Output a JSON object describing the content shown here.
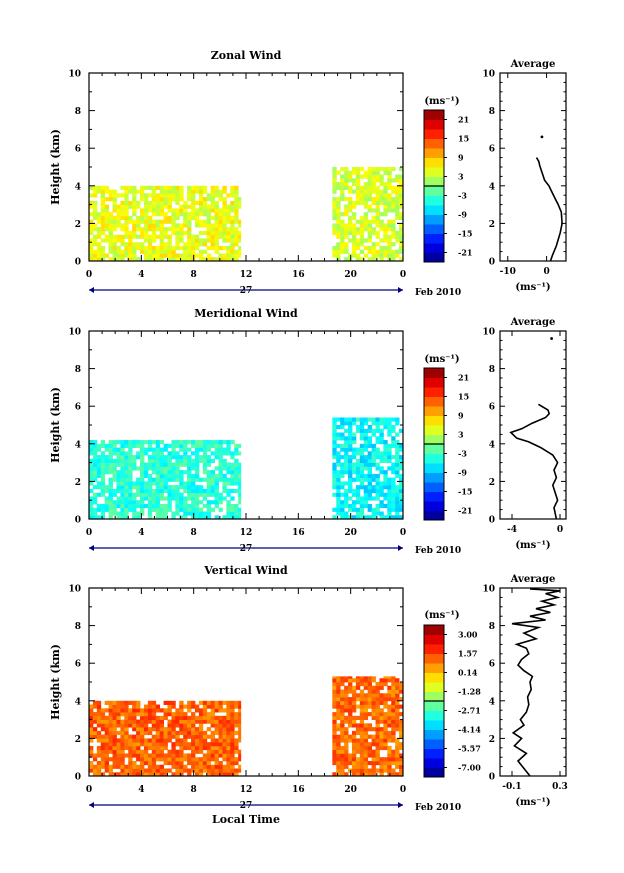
{
  "chart_data": [
    {
      "type": "heatmap",
      "title": "Zonal Wind",
      "ylabel": "Height (km)",
      "xlabel": "",
      "x_ticks": [
        "0",
        "4",
        "8",
        "12",
        "16",
        "20",
        "0"
      ],
      "y_ticks": [
        "0",
        "2",
        "4",
        "6",
        "8",
        "10"
      ],
      "xlim": [
        0,
        24
      ],
      "ylim": [
        0,
        10
      ],
      "date_day": "27",
      "date_month": "Feb 2010",
      "colorbar": {
        "unit": "(ms⁻¹)",
        "ticks": [
          "21",
          "15",
          "9",
          "3",
          "-3",
          "-9",
          "-15",
          "-21"
        ],
        "min": -24,
        "max": 24
      },
      "blocks": [
        {
          "x": [
            0,
            11.6
          ],
          "y": [
            0,
            4.0
          ],
          "value": 5,
          "cover": 0.8
        },
        {
          "x": [
            18.6,
            24
          ],
          "y": [
            0,
            5.0
          ],
          "value": 4,
          "cover": 0.75
        }
      ],
      "average": {
        "title": "Average",
        "xlabel": "(ms⁻¹)",
        "x_ticks": [
          "-10",
          "0"
        ],
        "xlim": [
          -12,
          5
        ],
        "y_ticks": [
          "0",
          "2",
          "4",
          "6",
          "8",
          "10"
        ],
        "points": [
          [
            1.0,
            0
          ],
          [
            1.5,
            0.3
          ],
          [
            2.5,
            0.8
          ],
          [
            3.5,
            1.5
          ],
          [
            4.0,
            2.0
          ],
          [
            3.8,
            2.6
          ],
          [
            3.0,
            3.0
          ],
          [
            2.0,
            3.4
          ],
          [
            1.3,
            3.7
          ],
          [
            0.6,
            4.0
          ],
          [
            -0.5,
            4.3
          ],
          [
            -1.0,
            4.6
          ],
          [
            -1.5,
            4.9
          ],
          [
            -1.8,
            5.1
          ],
          [
            -2.0,
            5.3
          ],
          [
            -2.6,
            5.5
          ]
        ],
        "isolated": [
          [
            -1.2,
            6.6
          ]
        ]
      }
    },
    {
      "type": "heatmap",
      "title": "Meridional Wind",
      "ylabel": "Height (km)",
      "xlabel": "",
      "x_ticks": [
        "0",
        "4",
        "8",
        "12",
        "16",
        "20",
        "0"
      ],
      "y_ticks": [
        "0",
        "2",
        "4",
        "6",
        "8",
        "10"
      ],
      "xlim": [
        0,
        24
      ],
      "ylim": [
        0,
        10
      ],
      "date_day": "27",
      "date_month": "Feb 2010",
      "colorbar": {
        "unit": "(ms⁻¹)",
        "ticks": [
          "21",
          "15",
          "9",
          "3",
          "-3",
          "-9",
          "-15",
          "-21"
        ],
        "min": -24,
        "max": 24
      },
      "blocks": [
        {
          "x": [
            0,
            11.6
          ],
          "y": [
            0,
            4.2
          ],
          "value": -4,
          "cover": 0.8
        },
        {
          "x": [
            18.6,
            24
          ],
          "y": [
            0,
            5.4
          ],
          "value": -6,
          "cover": 0.75
        }
      ],
      "average": {
        "title": "Average",
        "xlabel": "(ms⁻¹)",
        "x_ticks": [
          "-4",
          "0"
        ],
        "xlim": [
          -5,
          0.5
        ],
        "y_ticks": [
          "0",
          "2",
          "4",
          "6",
          "8",
          "10"
        ],
        "points": [
          [
            -0.3,
            0
          ],
          [
            -0.5,
            0.6
          ],
          [
            -0.2,
            1.0
          ],
          [
            -0.4,
            1.4
          ],
          [
            -0.6,
            1.8
          ],
          [
            -0.3,
            2.2
          ],
          [
            -0.5,
            2.6
          ],
          [
            -0.2,
            3.0
          ],
          [
            -0.6,
            3.4
          ],
          [
            -1.6,
            3.8
          ],
          [
            -2.6,
            4.1
          ],
          [
            -3.6,
            4.3
          ],
          [
            -4.1,
            4.6
          ],
          [
            -3.2,
            4.8
          ],
          [
            -2.3,
            5.1
          ],
          [
            -1.2,
            5.4
          ],
          [
            -0.9,
            5.6
          ],
          [
            -1.0,
            5.8
          ],
          [
            -1.8,
            6.1
          ]
        ],
        "isolated": [
          [
            -0.7,
            9.6
          ]
        ]
      }
    },
    {
      "type": "heatmap",
      "title": "Vertical Wind",
      "ylabel": "Height (km)",
      "xlabel": "Local Time",
      "x_ticks": [
        "0",
        "4",
        "8",
        "12",
        "16",
        "20",
        "0"
      ],
      "y_ticks": [
        "0",
        "2",
        "4",
        "6",
        "8",
        "10"
      ],
      "xlim": [
        0,
        24
      ],
      "ylim": [
        0,
        10
      ],
      "date_day": "27",
      "date_month": "Feb 2010",
      "colorbar": {
        "unit": "(ms⁻¹)",
        "ticks": [
          "3.00",
          "1.57",
          "0.14",
          "-1.28",
          "-2.71",
          "-4.14",
          "-5.57",
          "-7.00"
        ],
        "min": -7.7,
        "max": 3.7
      },
      "blocks": [
        {
          "x": [
            0,
            11.6
          ],
          "y": [
            0,
            4.0
          ],
          "value": 1.2,
          "cover": 0.85
        },
        {
          "x": [
            18.6,
            24
          ],
          "y": [
            0,
            5.3
          ],
          "value": 1.1,
          "cover": 0.8
        }
      ],
      "average": {
        "title": "Average",
        "xlabel": "(ms⁻¹)",
        "x_ticks": [
          "-0.1",
          "0.3"
        ],
        "xlim": [
          -0.2,
          0.35
        ],
        "y_ticks": [
          "0",
          "2",
          "4",
          "6",
          "8",
          "10"
        ],
        "points": [
          [
            0.05,
            0.0
          ],
          [
            0.0,
            0.4
          ],
          [
            -0.05,
            0.8
          ],
          [
            0.02,
            1.2
          ],
          [
            -0.08,
            1.6
          ],
          [
            -0.02,
            2.0
          ],
          [
            -0.09,
            2.3
          ],
          [
            0.0,
            2.7
          ],
          [
            -0.03,
            3.0
          ],
          [
            0.02,
            3.4
          ],
          [
            0.04,
            3.8
          ],
          [
            0.03,
            4.2
          ],
          [
            0.06,
            4.6
          ],
          [
            0.05,
            5.0
          ],
          [
            0.07,
            5.3
          ],
          [
            0.0,
            5.6
          ],
          [
            -0.05,
            5.9
          ],
          [
            -0.02,
            6.2
          ],
          [
            0.04,
            6.5
          ],
          [
            0.02,
            6.8
          ],
          [
            -0.06,
            7.0
          ],
          [
            0.1,
            7.3
          ],
          [
            0.0,
            7.6
          ],
          [
            0.12,
            7.9
          ],
          [
            -0.1,
            8.1
          ],
          [
            0.18,
            8.3
          ],
          [
            0.05,
            8.5
          ],
          [
            0.22,
            8.7
          ],
          [
            0.1,
            8.9
          ],
          [
            0.25,
            9.1
          ],
          [
            0.15,
            9.3
          ],
          [
            0.28,
            9.5
          ],
          [
            0.18,
            9.7
          ],
          [
            0.3,
            9.85
          ],
          [
            0.05,
            9.95
          ]
        ],
        "isolated": []
      }
    }
  ]
}
